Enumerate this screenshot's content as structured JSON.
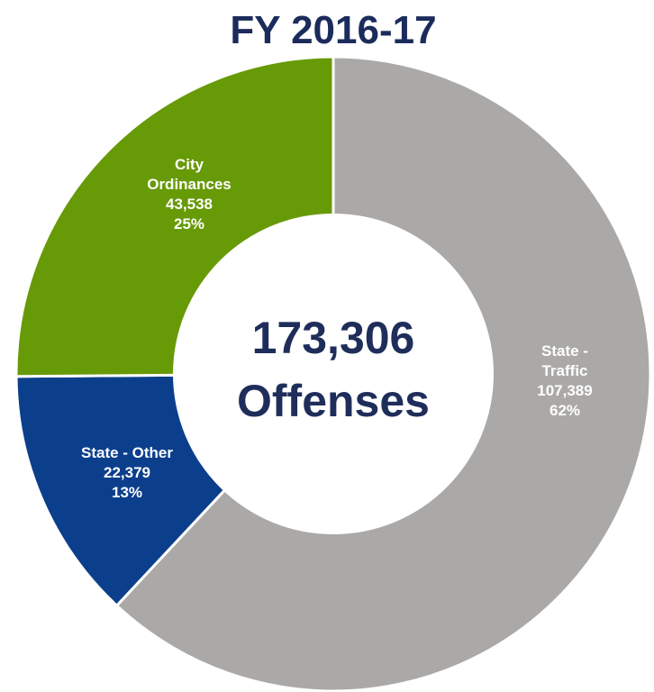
{
  "chart_data": {
    "type": "donut",
    "title": "FY 2016-17",
    "center_text": [
      "173,306",
      "Offenses"
    ],
    "categories": [
      "State - Traffic",
      "State - Other",
      "City Ordinances"
    ],
    "values": [
      107389,
      22379,
      43538
    ],
    "value_labels": [
      "107,389",
      "22,379",
      "43,538"
    ],
    "percents": [
      62,
      13,
      25
    ],
    "percent_labels": [
      "62%",
      "13%",
      "25%"
    ],
    "colors": [
      "#aba9a7",
      "#0c3f8b",
      "#679a07"
    ]
  }
}
